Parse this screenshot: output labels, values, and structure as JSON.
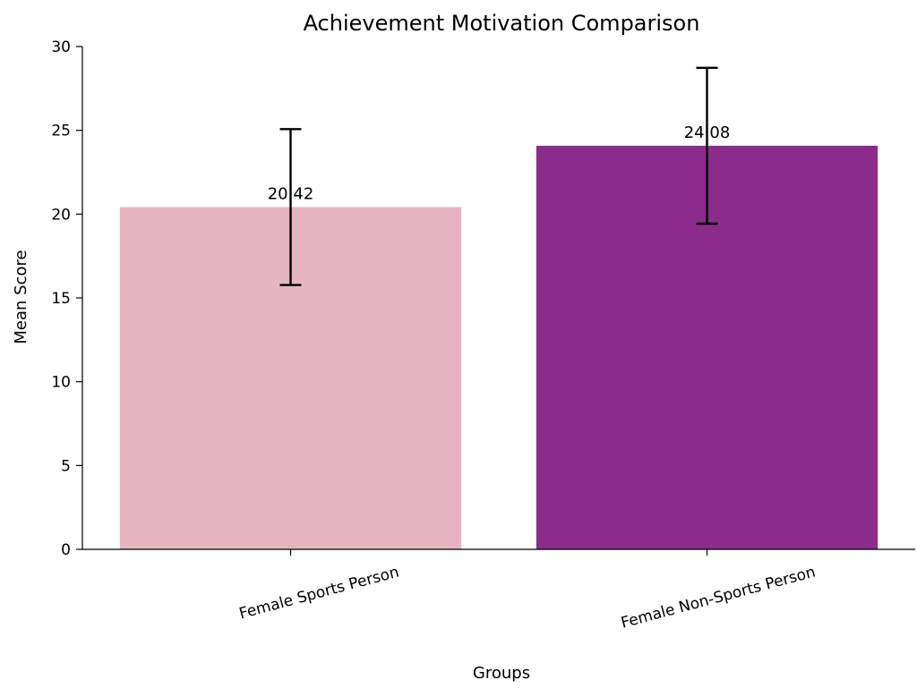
{
  "chart_data": {
    "type": "bar",
    "title": "Achievement Motivation Comparison",
    "xlabel": "Groups",
    "ylabel": "Mean Score",
    "categories": [
      "Female Sports Person",
      "Female Non-Sports Person"
    ],
    "values": [
      20.42,
      24.08
    ],
    "value_labels": [
      "20.42",
      "24.08"
    ],
    "error": [
      4.65,
      4.65
    ],
    "colors": [
      "#e6b5c1",
      "#8b2c8b"
    ],
    "ylim": [
      0,
      30
    ],
    "yticks": [
      0,
      5,
      10,
      15,
      20,
      25,
      30
    ],
    "grid": false,
    "legend": null
  }
}
